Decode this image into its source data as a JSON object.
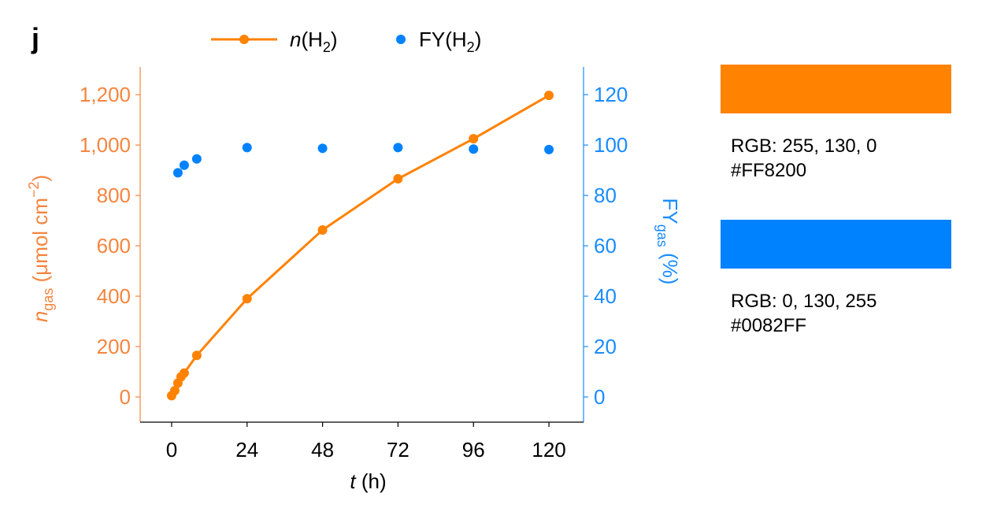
{
  "panel_label": "j",
  "chart_data": {
    "type": "line",
    "x_axis": {
      "label_var": "t",
      "label_unit": " (h)",
      "range": [
        -10,
        131
      ],
      "ticks": [
        0,
        24,
        48,
        72,
        96,
        120
      ],
      "tick_labels": [
        "0",
        "24",
        "48",
        "72",
        "96",
        "120"
      ]
    },
    "y_left": {
      "label_var": "n",
      "label_sub": "gas",
      "label_unit": " (μmol cm",
      "label_sup": "−2",
      "label_close": ")",
      "range": [
        -100,
        1310
      ],
      "ticks": [
        0,
        200,
        400,
        600,
        800,
        1000,
        1200
      ],
      "tick_labels": [
        "0",
        "200",
        "400",
        "600",
        "800",
        "1,000",
        "1,200"
      ],
      "color": "#F5853F"
    },
    "y_right": {
      "label_main": "FY",
      "label_sub": "gas",
      "label_unit": " (%)",
      "range": [
        -10,
        131
      ],
      "ticks": [
        0,
        20,
        40,
        60,
        80,
        100,
        120
      ],
      "tick_labels": [
        "0",
        "20",
        "40",
        "60",
        "80",
        "100",
        "120"
      ],
      "color": "#1A8CFF"
    },
    "series": [
      {
        "name": "n(H2)",
        "axis": "left",
        "style": "line+markers",
        "color": "#FF8200",
        "x": [
          0,
          1,
          2,
          3,
          4,
          8,
          24,
          48,
          72,
          96,
          120
        ],
        "values": [
          5,
          25,
          55,
          80,
          95,
          165,
          390,
          663,
          866,
          1025,
          1197
        ]
      },
      {
        "name": "FY(H2)",
        "axis": "right",
        "style": "markers",
        "color": "#0082FF",
        "x": [
          2,
          4,
          8,
          24,
          48,
          72,
          96,
          120
        ],
        "values": [
          89,
          92,
          94.5,
          99,
          98.7,
          99,
          98.4,
          98.2
        ]
      }
    ],
    "legend": {
      "placement": "top",
      "entries": [
        {
          "var": "n",
          "open": "(H",
          "sub": "2",
          "close": ")"
        },
        {
          "var": "",
          "open": "FY(H",
          "sub": "2",
          "close": ")"
        }
      ]
    }
  },
  "swatches": [
    {
      "color": "#FF8200",
      "rgb_text": "RGB: 255, 130, 0",
      "hex_text": "#FF8200"
    },
    {
      "color": "#0082FF",
      "rgb_text": "RGB: 0, 130, 255",
      "hex_text": "#0082FF"
    }
  ]
}
